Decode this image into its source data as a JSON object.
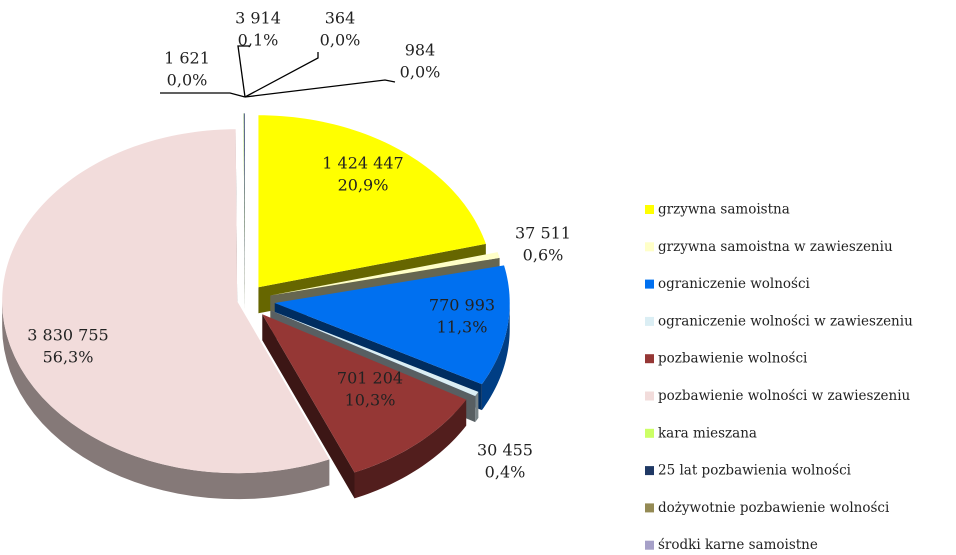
{
  "chart_data": {
    "type": "pie",
    "categories": [
      "grzywna samoistna",
      "grzywna samoistna w zawieszeniu",
      "ograniczenie wolności",
      "ograniczenie wolności w zawieszeniu",
      "pozbawienie wolności",
      "pozbawienie wolności w zawieszeniu",
      "kara mieszana",
      "25 lat pozbawienia wolności",
      "dożywotnie pozbawienie wolności",
      "środki karne samoistne"
    ],
    "values": [
      1424447,
      37511,
      770993,
      30455,
      701204,
      3830755,
      1621,
      3914,
      364,
      984
    ],
    "value_labels": [
      "1 424 447",
      "37 511",
      "770 993",
      "30 455",
      "701 204",
      "3 830 755",
      "1 621",
      "3 914",
      "364",
      "984"
    ],
    "percents": [
      20.9,
      0.6,
      11.3,
      0.4,
      10.3,
      56.3,
      0.0,
      0.1,
      0.0,
      0.0
    ],
    "percent_labels": [
      "20,9%",
      "0,6%",
      "11,3%",
      "0,4%",
      "10,3%",
      "56,3%",
      "0,0%",
      "0,1%",
      "0,0%",
      "0,0%"
    ],
    "colors": [
      "#ffff00",
      "#ffffc8",
      "#0070f0",
      "#dbeef4",
      "#953735",
      "#f2dcdb",
      "#ccff66",
      "#1f3864",
      "#948a54",
      "#a6a0c8"
    ],
    "legend": "right"
  }
}
